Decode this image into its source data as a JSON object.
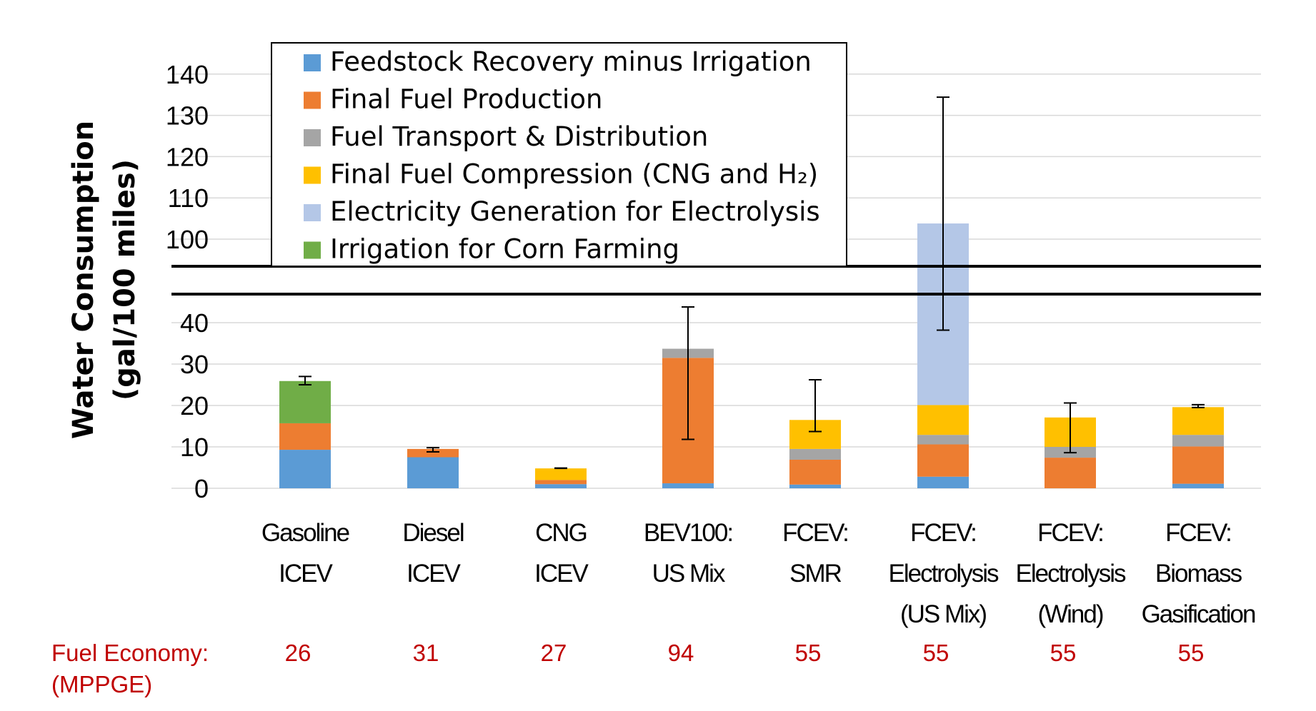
{
  "chart_data": {
    "type": "bar",
    "stacked": true,
    "broken_axis": true,
    "ylabel": "Water Consumption",
    "ylabel_units": "(gal/100 miles)",
    "lower_ticks": [
      0,
      10,
      20,
      30,
      40
    ],
    "upper_ticks": [
      100,
      110,
      120,
      130,
      140
    ],
    "grid": true,
    "legend_position": "top-left",
    "categories": [
      [
        "Gasoline",
        "ICEV"
      ],
      [
        "Diesel",
        "ICEV"
      ],
      [
        "CNG",
        "ICEV"
      ],
      [
        "BEV100:",
        "US Mix"
      ],
      [
        "FCEV:",
        "SMR"
      ],
      [
        "FCEV:",
        "Electrolysis",
        "(US Mix)"
      ],
      [
        "FCEV:",
        "Electrolysis",
        "(Wind)"
      ],
      [
        "FCEV:",
        "Biomass",
        "Gasification"
      ]
    ],
    "series": [
      {
        "name": "Feedstock Recovery minus Irrigation",
        "color": "#5b9bd5",
        "values": [
          9.3,
          7.5,
          1.0,
          1.2,
          0.9,
          2.8,
          0.0,
          1.1
        ]
      },
      {
        "name": "Final Fuel Production",
        "color": "#ed7d31",
        "values": [
          6.4,
          2.0,
          1.0,
          30.3,
          6.0,
          7.8,
          7.4,
          9.0
        ]
      },
      {
        "name": "Fuel Transport & Distribution",
        "color": "#a5a5a5",
        "values": [
          0.0,
          0.0,
          0.0,
          2.2,
          2.6,
          2.3,
          2.6,
          2.8
        ]
      },
      {
        "name": "Final Fuel Compression (CNG and H₂)",
        "color": "#ffc000",
        "values": [
          0.0,
          0.0,
          2.8,
          0.0,
          7.0,
          7.2,
          7.1,
          6.7
        ]
      },
      {
        "name": "Electricity Generation for Electrolysis",
        "color": "#b4c7e7",
        "values": [
          0.0,
          0.0,
          0.0,
          0.0,
          0.0,
          83.7,
          0.0,
          0.0
        ]
      },
      {
        "name": "Irrigation for Corn Farming",
        "color": "#70ad47",
        "values": [
          10.2,
          0.0,
          0.0,
          0.0,
          0.0,
          0.0,
          0.0,
          0.0
        ]
      }
    ],
    "error_bars": [
      {
        "low": 25.0,
        "high": 27.0
      },
      {
        "low": 8.8,
        "high": 9.8
      },
      {
        "low": 4.8,
        "high": 4.9
      },
      {
        "low": 11.8,
        "high": 43.8
      },
      {
        "low": 13.7,
        "high": 26.2
      },
      {
        "low": 38.2,
        "high": 134.4
      },
      {
        "low": 8.6,
        "high": 20.6
      },
      {
        "low": 19.5,
        "high": 20.2
      }
    ],
    "fuel_economy": {
      "label": "Fuel Economy:",
      "units": "(MPPGE)",
      "values": [
        "26",
        "31",
        "27",
        "94",
        "55",
        "55",
        "55",
        "55"
      ]
    }
  }
}
